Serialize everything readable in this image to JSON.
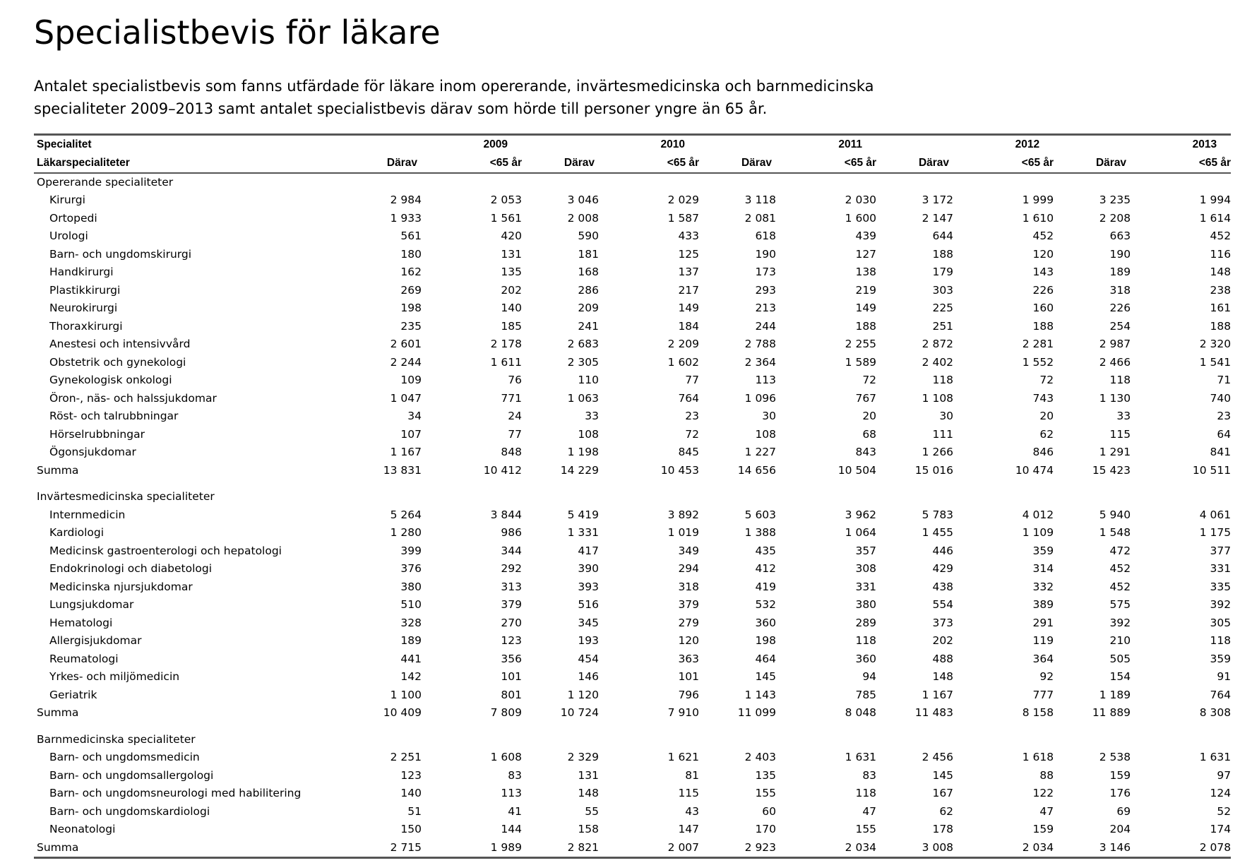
{
  "title": "Specialistbevis för läkare",
  "subtitle": "Antalet specialistbevis som fanns utfärdade för läkare inom opererande, invärtesmedicinska och barnmedicinska specialiteter 2009–2013 samt antalet specialistbevis därav som hörde till personer yngre än 65 år.",
  "table": {
    "header_label": "Specialitet",
    "subheader_label": "Läkarspecialiteter",
    "years": [
      "2009",
      "2010",
      "2011",
      "2012",
      "2013"
    ],
    "darav_label": "Därav",
    "under65_label": "<65 år",
    "sections": [
      {
        "name": "Opererande specialiteter",
        "rows": [
          {
            "label": "Kirurgi",
            "values": [
              "2 984",
              "2 053",
              "3 046",
              "2 029",
              "3 118",
              "2 030",
              "3 172",
              "1 999",
              "3 235",
              "1 994"
            ]
          },
          {
            "label": "Ortopedi",
            "values": [
              "1 933",
              "1 561",
              "2 008",
              "1 587",
              "2 081",
              "1 600",
              "2 147",
              "1 610",
              "2 208",
              "1 614"
            ]
          },
          {
            "label": "Urologi",
            "values": [
              "561",
              "420",
              "590",
              "433",
              "618",
              "439",
              "644",
              "452",
              "663",
              "452"
            ]
          },
          {
            "label": "Barn- och ungdomskirurgi",
            "values": [
              "180",
              "131",
              "181",
              "125",
              "190",
              "127",
              "188",
              "120",
              "190",
              "116"
            ]
          },
          {
            "label": "Handkirurgi",
            "values": [
              "162",
              "135",
              "168",
              "137",
              "173",
              "138",
              "179",
              "143",
              "189",
              "148"
            ]
          },
          {
            "label": "Plastikkirurgi",
            "values": [
              "269",
              "202",
              "286",
              "217",
              "293",
              "219",
              "303",
              "226",
              "318",
              "238"
            ]
          },
          {
            "label": "Neurokirurgi",
            "values": [
              "198",
              "140",
              "209",
              "149",
              "213",
              "149",
              "225",
              "160",
              "226",
              "161"
            ]
          },
          {
            "label": "Thoraxkirurgi",
            "values": [
              "235",
              "185",
              "241",
              "184",
              "244",
              "188",
              "251",
              "188",
              "254",
              "188"
            ]
          },
          {
            "label": "Anestesi och intensivvård",
            "values": [
              "2 601",
              "2 178",
              "2 683",
              "2 209",
              "2 788",
              "2 255",
              "2 872",
              "2 281",
              "2 987",
              "2 320"
            ]
          },
          {
            "label": "Obstetrik och gynekologi",
            "values": [
              "2 244",
              "1 611",
              "2 305",
              "1 602",
              "2 364",
              "1 589",
              "2 402",
              "1 552",
              "2 466",
              "1 541"
            ]
          },
          {
            "label": "Gynekologisk onkologi",
            "values": [
              "109",
              "76",
              "110",
              "77",
              "113",
              "72",
              "118",
              "72",
              "118",
              "71"
            ]
          },
          {
            "label": "Öron-, näs- och halssjukdomar",
            "values": [
              "1 047",
              "771",
              "1 063",
              "764",
              "1 096",
              "767",
              "1 108",
              "743",
              "1 130",
              "740"
            ]
          },
          {
            "label": "Röst- och talrubbningar",
            "values": [
              "34",
              "24",
              "33",
              "23",
              "30",
              "20",
              "30",
              "20",
              "33",
              "23"
            ]
          },
          {
            "label": "Hörselrubbningar",
            "values": [
              "107",
              "77",
              "108",
              "72",
              "108",
              "68",
              "111",
              "62",
              "115",
              "64"
            ]
          },
          {
            "label": "Ögonsjukdomar",
            "values": [
              "1 167",
              "848",
              "1 198",
              "845",
              "1 227",
              "843",
              "1 266",
              "846",
              "1 291",
              "841"
            ]
          }
        ],
        "summa": {
          "label": "Summa",
          "values": [
            "13 831",
            "10 412",
            "14 229",
            "10 453",
            "14 656",
            "10 504",
            "15 016",
            "10 474",
            "15 423",
            "10 511"
          ]
        }
      },
      {
        "name": "Invärtesmedicinska specialiteter",
        "rows": [
          {
            "label": "Internmedicin",
            "values": [
              "5 264",
              "3 844",
              "5 419",
              "3 892",
              "5 603",
              "3 962",
              "5 783",
              "4 012",
              "5 940",
              "4 061"
            ]
          },
          {
            "label": "Kardiologi",
            "values": [
              "1 280",
              "986",
              "1 331",
              "1 019",
              "1 388",
              "1 064",
              "1 455",
              "1 109",
              "1 548",
              "1 175"
            ]
          },
          {
            "label": "Medicinsk gastroenterologi och hepatologi",
            "values": [
              "399",
              "344",
              "417",
              "349",
              "435",
              "357",
              "446",
              "359",
              "472",
              "377"
            ]
          },
          {
            "label": "Endokrinologi och diabetologi",
            "values": [
              "376",
              "292",
              "390",
              "294",
              "412",
              "308",
              "429",
              "314",
              "452",
              "331"
            ]
          },
          {
            "label": "Medicinska njursjukdomar",
            "values": [
              "380",
              "313",
              "393",
              "318",
              "419",
              "331",
              "438",
              "332",
              "452",
              "335"
            ]
          },
          {
            "label": "Lungsjukdomar",
            "values": [
              "510",
              "379",
              "516",
              "379",
              "532",
              "380",
              "554",
              "389",
              "575",
              "392"
            ]
          },
          {
            "label": "Hematologi",
            "values": [
              "328",
              "270",
              "345",
              "279",
              "360",
              "289",
              "373",
              "291",
              "392",
              "305"
            ]
          },
          {
            "label": "Allergisjukdomar",
            "values": [
              "189",
              "123",
              "193",
              "120",
              "198",
              "118",
              "202",
              "119",
              "210",
              "118"
            ]
          },
          {
            "label": "Reumatologi",
            "values": [
              "441",
              "356",
              "454",
              "363",
              "464",
              "360",
              "488",
              "364",
              "505",
              "359"
            ]
          },
          {
            "label": "Yrkes- och miljömedicin",
            "values": [
              "142",
              "101",
              "146",
              "101",
              "145",
              "94",
              "148",
              "92",
              "154",
              "91"
            ]
          },
          {
            "label": "Geriatrik",
            "values": [
              "1 100",
              "801",
              "1 120",
              "796",
              "1 143",
              "785",
              "1 167",
              "777",
              "1 189",
              "764"
            ]
          }
        ],
        "summa": {
          "label": "Summa",
          "values": [
            "10 409",
            "7 809",
            "10 724",
            "7 910",
            "11 099",
            "8 048",
            "11 483",
            "8 158",
            "11 889",
            "8 308"
          ]
        }
      },
      {
        "name": "Barnmedicinska specialiteter",
        "rows": [
          {
            "label": "Barn- och ungdomsmedicin",
            "values": [
              "2 251",
              "1 608",
              "2 329",
              "1 621",
              "2 403",
              "1 631",
              "2 456",
              "1 618",
              "2 538",
              "1 631"
            ]
          },
          {
            "label": "Barn- och ungdomsallergologi",
            "values": [
              "123",
              "83",
              "131",
              "81",
              "135",
              "83",
              "145",
              "88",
              "159",
              "97"
            ]
          },
          {
            "label": "Barn- och ungdomsneurologi med habilitering",
            "values": [
              "140",
              "113",
              "148",
              "115",
              "155",
              "118",
              "167",
              "122",
              "176",
              "124"
            ]
          },
          {
            "label": "Barn- och ungdomskardiologi",
            "values": [
              "51",
              "41",
              "55",
              "43",
              "60",
              "47",
              "62",
              "47",
              "69",
              "52"
            ]
          },
          {
            "label": "Neonatologi",
            "values": [
              "150",
              "144",
              "158",
              "147",
              "170",
              "155",
              "178",
              "159",
              "204",
              "174"
            ]
          }
        ],
        "summa": {
          "label": "Summa",
          "values": [
            "2 715",
            "1 989",
            "2 821",
            "2 007",
            "2 923",
            "2 034",
            "3 008",
            "2 034",
            "3 146",
            "2 078"
          ]
        }
      }
    ]
  }
}
